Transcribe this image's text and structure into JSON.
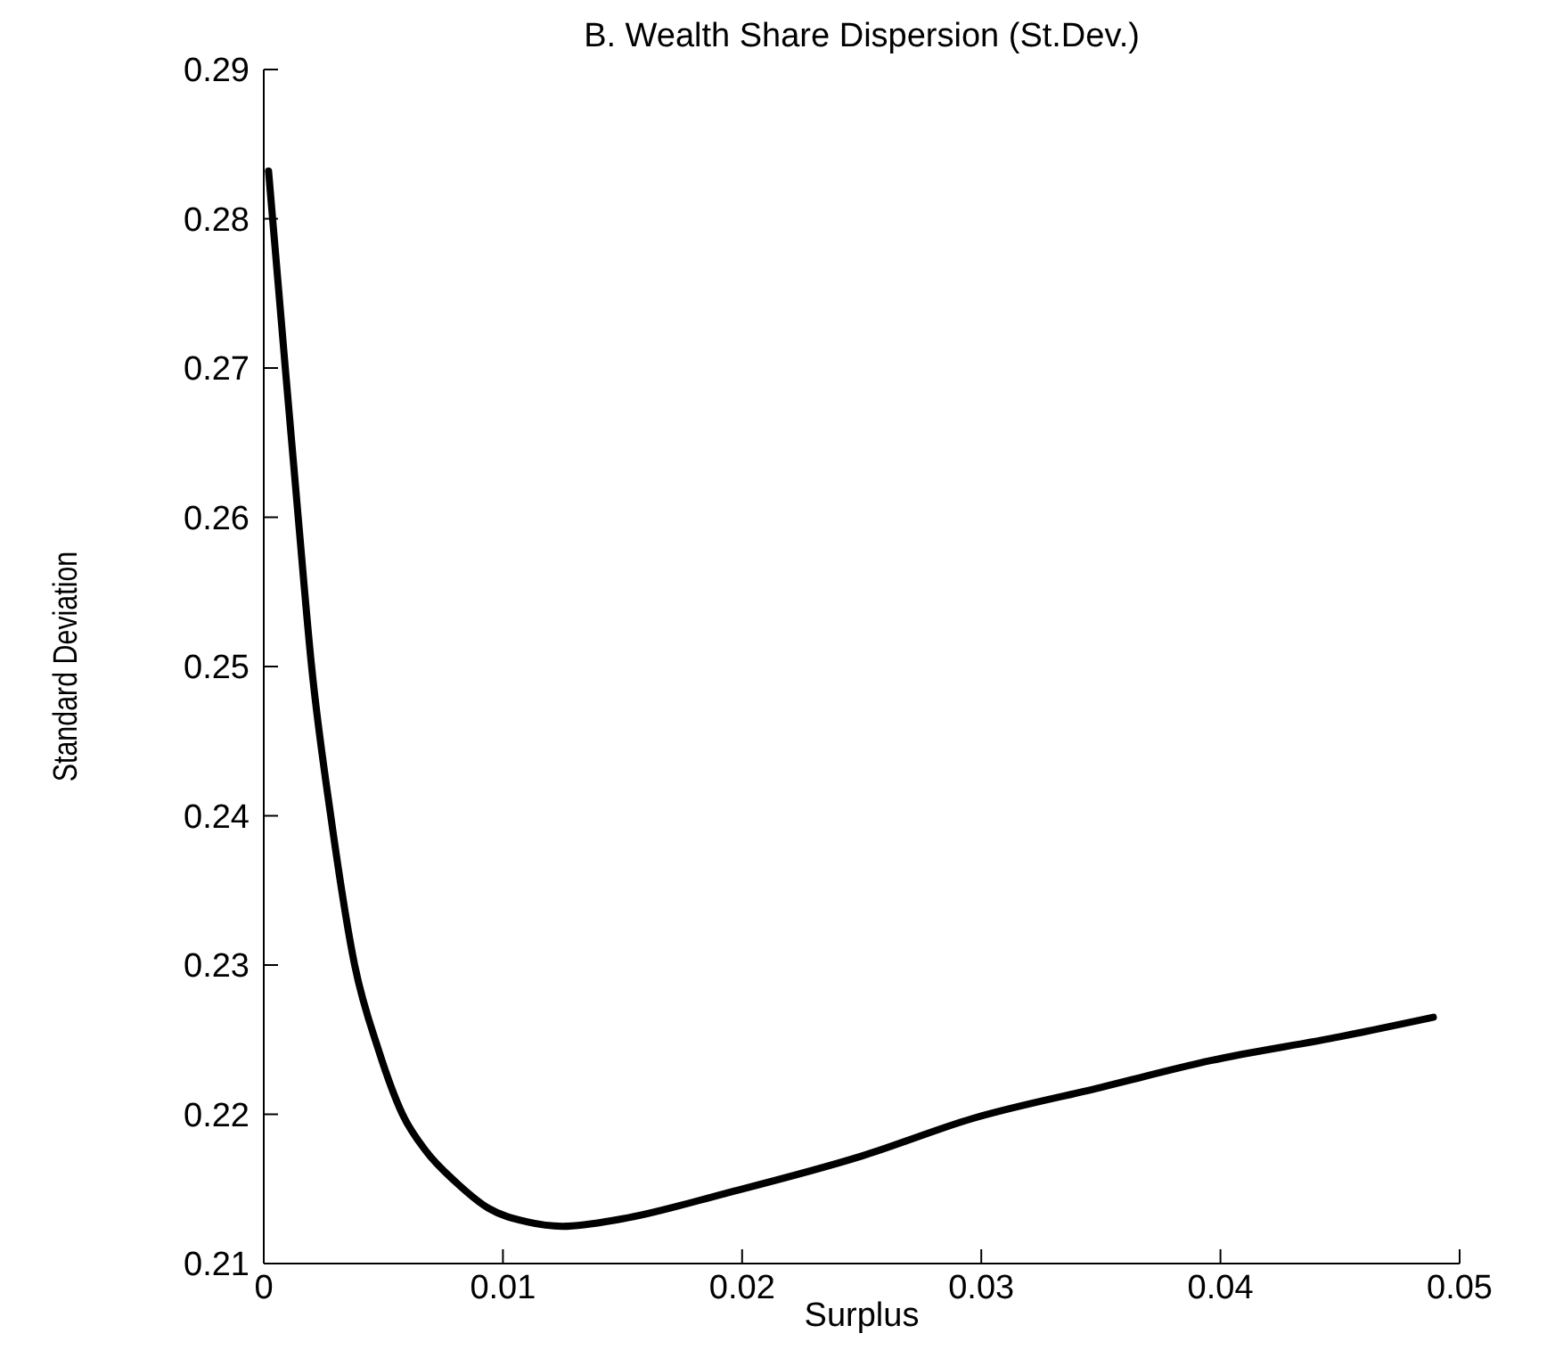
{
  "chart_data": {
    "type": "line",
    "title": "B. Wealth Share Dispersion (St.Dev.)",
    "xlabel": "Surplus",
    "ylabel": "Standard Deviation",
    "x": [
      0.0002,
      0.0009,
      0.00144,
      0.002,
      0.0028,
      0.0038,
      0.0048,
      0.0058,
      0.0068,
      0.008,
      0.0094,
      0.011,
      0.0125,
      0.015,
      0.0193,
      0.025,
      0.0296,
      0.035,
      0.0396,
      0.045,
      0.0489
    ],
    "series": [
      {
        "color": "#000000",
        "values": [
          0.2832,
          0.27,
          0.26,
          0.25,
          0.24,
          0.23,
          0.2243,
          0.22,
          0.2175,
          0.2155,
          0.2137,
          0.2128,
          0.2125,
          0.213,
          0.2147,
          0.2172,
          0.2197,
          0.2218,
          0.2236,
          0.2252,
          0.2265
        ]
      }
    ],
    "xlim": [
      0,
      0.05
    ],
    "xticks": [
      0,
      0.01,
      0.02,
      0.03,
      0.04,
      0.05
    ],
    "ylim": [
      0.21,
      0.29
    ],
    "yticks": [
      0.21,
      0.22,
      0.23,
      0.24,
      0.25,
      0.26,
      0.27,
      0.28,
      0.29
    ],
    "grid": false,
    "legend": false,
    "marker": "none",
    "line_style": "solid"
  }
}
